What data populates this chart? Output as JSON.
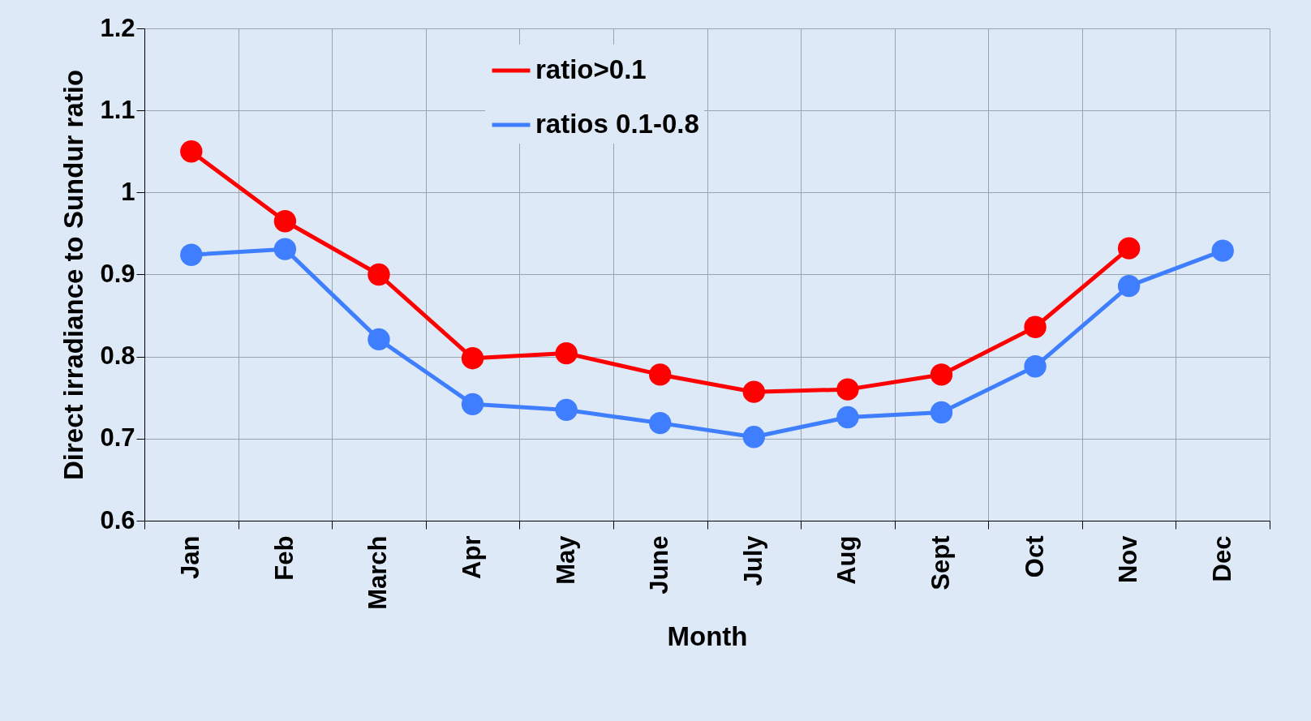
{
  "chart_data": {
    "type": "line",
    "xlabel": "Month",
    "ylabel": "Direct irradiance to Sundur ratio",
    "categories": [
      "Jan",
      "Feb",
      "March",
      "Apr",
      "May",
      "June",
      "July",
      "Aug",
      "Sept",
      "Oct",
      "Nov",
      "Dec"
    ],
    "series": [
      {
        "name": "ratio>0.1",
        "color": "#ff0000",
        "values": [
          1.05,
          0.965,
          0.9,
          0.798,
          0.804,
          0.778,
          0.757,
          0.76,
          0.778,
          0.836,
          0.932,
          null
        ]
      },
      {
        "name": "ratios 0.1-0.8",
        "color": "#3f7fff",
        "values": [
          0.924,
          0.931,
          0.821,
          0.742,
          0.735,
          0.719,
          0.702,
          0.726,
          0.732,
          0.788,
          0.886,
          0.929
        ]
      }
    ],
    "ylim": [
      0.6,
      1.2
    ],
    "yticks": [
      0.6,
      0.7,
      0.8,
      0.9,
      1,
      1.1,
      1.2
    ],
    "grid": true,
    "legend": "top left",
    "marker": "circle",
    "line_style": "solid"
  }
}
